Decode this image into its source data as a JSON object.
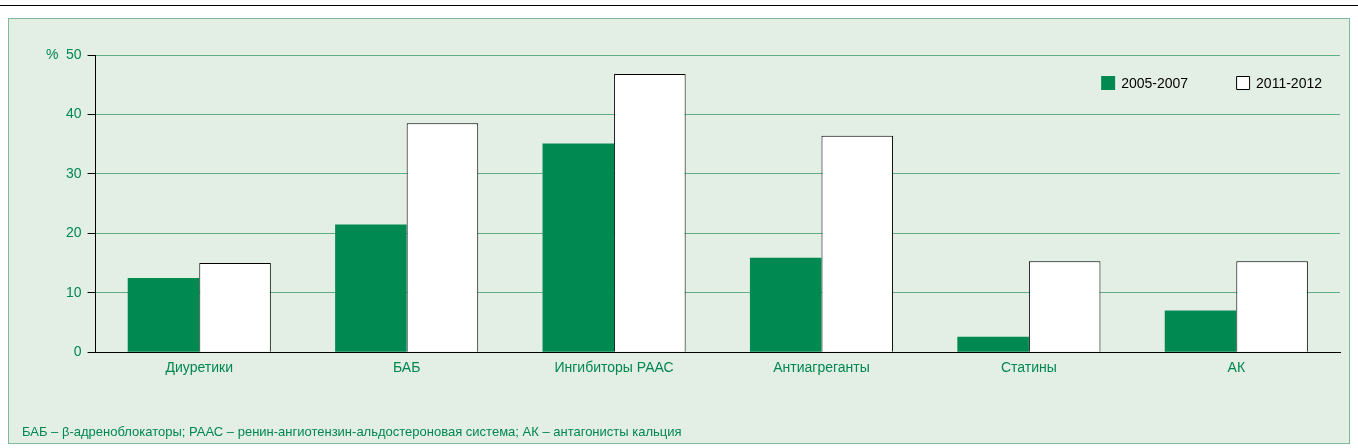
{
  "chart_data": {
    "type": "bar",
    "ylabel": "%",
    "categories": [
      "Диуретики",
      "БАБ",
      "Ингибиторы РААС",
      "Антиагреганты",
      "Статины",
      "АК"
    ],
    "series": [
      {
        "name": "2005-2007",
        "color": "#008a52",
        "values": [
          12.5,
          21.5,
          35.1,
          15.9,
          2.6,
          7.0
        ]
      },
      {
        "name": "2011-2012",
        "color": "#ffffff",
        "values": [
          15,
          38.5,
          46.8,
          36.4,
          15.3,
          15.3
        ]
      }
    ],
    "ylim": [
      0,
      50
    ],
    "yticks": [
      0,
      10,
      20,
      30,
      40,
      50
    ],
    "grid": "y",
    "legend": "top right",
    "annotations": [
      "БАБ – β-адреноблокаторы; РААС – ренин-ангиотензин-альдостероновая система; АК – антагонисты кальция"
    ]
  }
}
